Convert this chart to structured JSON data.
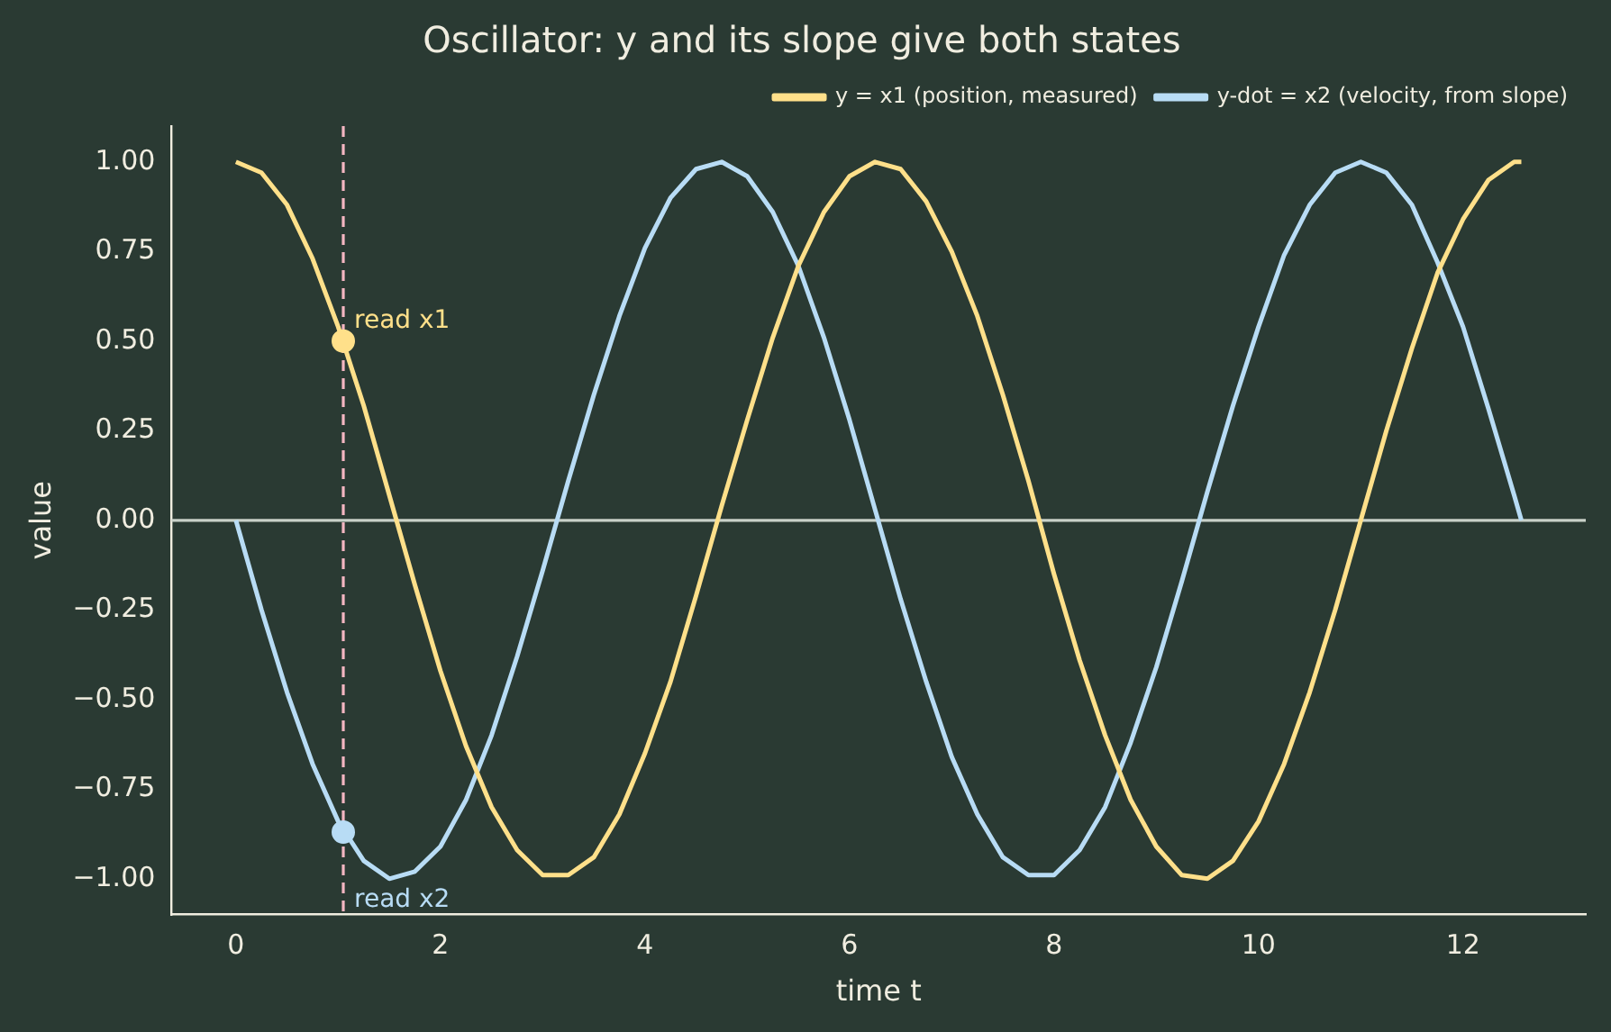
{
  "chart_data": {
    "type": "line",
    "title": "Oscillator: y and its slope give both states",
    "xlabel": "time t",
    "ylabel": "value",
    "x": [
      0,
      0.25,
      0.5,
      0.75,
      1,
      1.25,
      1.5,
      1.75,
      2,
      2.25,
      2.5,
      2.75,
      3,
      3.25,
      3.5,
      3.75,
      4,
      4.25,
      4.5,
      4.75,
      5,
      5.25,
      5.5,
      5.75,
      6,
      6.25,
      6.5,
      6.75,
      7,
      7.25,
      7.5,
      7.75,
      8,
      8.25,
      8.5,
      8.75,
      9,
      9.25,
      9.5,
      9.75,
      10,
      10.25,
      10.5,
      10.75,
      11,
      11.25,
      11.5,
      11.75,
      12,
      12.25,
      12.5,
      12.57
    ],
    "series": [
      {
        "name": "y = x1 (position, measured)",
        "color": "#ffe08a",
        "values": [
          1,
          0.97,
          0.88,
          0.73,
          0.54,
          0.32,
          0.07,
          -0.18,
          -0.42,
          -0.63,
          -0.8,
          -0.92,
          -0.99,
          -0.99,
          -0.94,
          -0.82,
          -0.65,
          -0.45,
          -0.21,
          0.04,
          0.28,
          0.51,
          0.71,
          0.86,
          0.96,
          1,
          0.98,
          0.89,
          0.75,
          0.57,
          0.35,
          0.11,
          -0.15,
          -0.39,
          -0.6,
          -0.78,
          -0.91,
          -0.99,
          -1,
          -0.95,
          -0.84,
          -0.68,
          -0.48,
          -0.25,
          0,
          0.25,
          0.48,
          0.69,
          0.84,
          0.95,
          1,
          1
        ]
      },
      {
        "name": "y-dot = x2 (velocity, from slope)",
        "color": "#b8dcf5",
        "values": [
          0,
          -0.25,
          -0.48,
          -0.68,
          -0.84,
          -0.95,
          -1,
          -0.98,
          -0.91,
          -0.78,
          -0.6,
          -0.38,
          -0.14,
          0.11,
          0.35,
          0.57,
          0.76,
          0.9,
          0.98,
          1,
          0.96,
          0.86,
          0.71,
          0.51,
          0.28,
          0.03,
          -0.22,
          -0.45,
          -0.66,
          -0.82,
          -0.94,
          -0.99,
          -0.99,
          -0.92,
          -0.8,
          -0.62,
          -0.41,
          -0.17,
          0.08,
          0.32,
          0.54,
          0.74,
          0.88,
          0.97,
          1,
          0.97,
          0.88,
          0.72,
          0.54,
          0.31,
          0.07,
          0
        ]
      },
      {
        "type": "scatter",
        "color": "#ffe08a",
        "x": [
          1.05
        ],
        "values": [
          0.5
        ]
      },
      {
        "type": "scatter",
        "color": "#b8dcf5",
        "x": [
          1.05
        ],
        "values": [
          -0.87
        ]
      }
    ],
    "annotations": [
      {
        "text": "read x1",
        "x": 1.05,
        "y": 0.5
      },
      {
        "text": "read x2",
        "x": 1.05,
        "y": -0.87
      }
    ],
    "ref_lines": [
      {
        "axis": "x",
        "value": 1.05,
        "color": "#f4b6c2",
        "line_style": "dashed"
      },
      {
        "axis": "y",
        "value": 0,
        "color": "#c8d0c8",
        "line_style": "solid"
      }
    ],
    "xlim": [
      -0.63,
      13.2
    ],
    "xticks": [
      0,
      2,
      4,
      6,
      8,
      10,
      12
    ],
    "ylim": [
      -1.1,
      1.1
    ],
    "yticks": [
      {
        "value": -1,
        "label": "−1.00"
      },
      {
        "value": -0.75,
        "label": "−0.75"
      },
      {
        "value": -0.5,
        "label": "−0.50"
      },
      {
        "value": -0.25,
        "label": "−0.25"
      },
      {
        "value": 0,
        "label": "0.00"
      },
      {
        "value": 0.25,
        "label": "0.25"
      },
      {
        "value": 0.5,
        "label": "0.50"
      },
      {
        "value": 0.75,
        "label": "0.75"
      },
      {
        "value": 1,
        "label": "1.00"
      }
    ],
    "legend": "top right",
    "grid": false,
    "line_style": "solid"
  }
}
